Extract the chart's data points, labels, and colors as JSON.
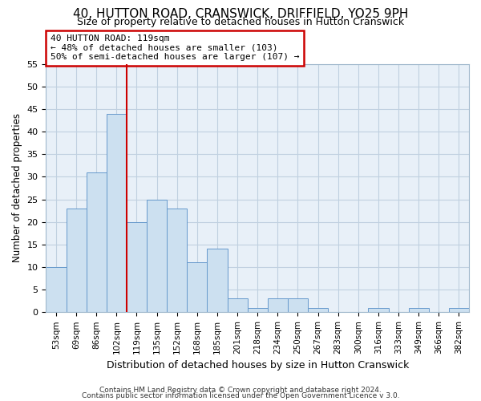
{
  "title": "40, HUTTON ROAD, CRANSWICK, DRIFFIELD, YO25 9PH",
  "subtitle": "Size of property relative to detached houses in Hutton Cranswick",
  "xlabel": "Distribution of detached houses by size in Hutton Cranswick",
  "ylabel": "Number of detached properties",
  "bar_labels": [
    "53sqm",
    "69sqm",
    "86sqm",
    "102sqm",
    "119sqm",
    "135sqm",
    "152sqm",
    "168sqm",
    "185sqm",
    "201sqm",
    "218sqm",
    "234sqm",
    "250sqm",
    "267sqm",
    "283sqm",
    "300sqm",
    "316sqm",
    "333sqm",
    "349sqm",
    "366sqm",
    "382sqm"
  ],
  "bar_values": [
    10,
    23,
    31,
    44,
    20,
    25,
    23,
    11,
    14,
    3,
    1,
    3,
    3,
    1,
    0,
    0,
    1,
    0,
    1,
    0,
    1
  ],
  "bar_color": "#cce0f0",
  "bar_edge_color": "#6699cc",
  "vline_color": "#cc0000",
  "ylim": [
    0,
    55
  ],
  "yticks": [
    0,
    5,
    10,
    15,
    20,
    25,
    30,
    35,
    40,
    45,
    50,
    55
  ],
  "annotation_title": "40 HUTTON ROAD: 119sqm",
  "annotation_line1": "← 48% of detached houses are smaller (103)",
  "annotation_line2": "50% of semi-detached houses are larger (107) →",
  "annotation_box_color": "#ffffff",
  "annotation_box_edge": "#cc0000",
  "footer1": "Contains HM Land Registry data © Crown copyright and database right 2024.",
  "footer2": "Contains public sector information licensed under the Open Government Licence v 3.0.",
  "bg_color": "#ffffff",
  "plot_bg_color": "#e8f0f8",
  "grid_color": "#c0d0e0",
  "title_fontsize": 11,
  "subtitle_fontsize": 9
}
